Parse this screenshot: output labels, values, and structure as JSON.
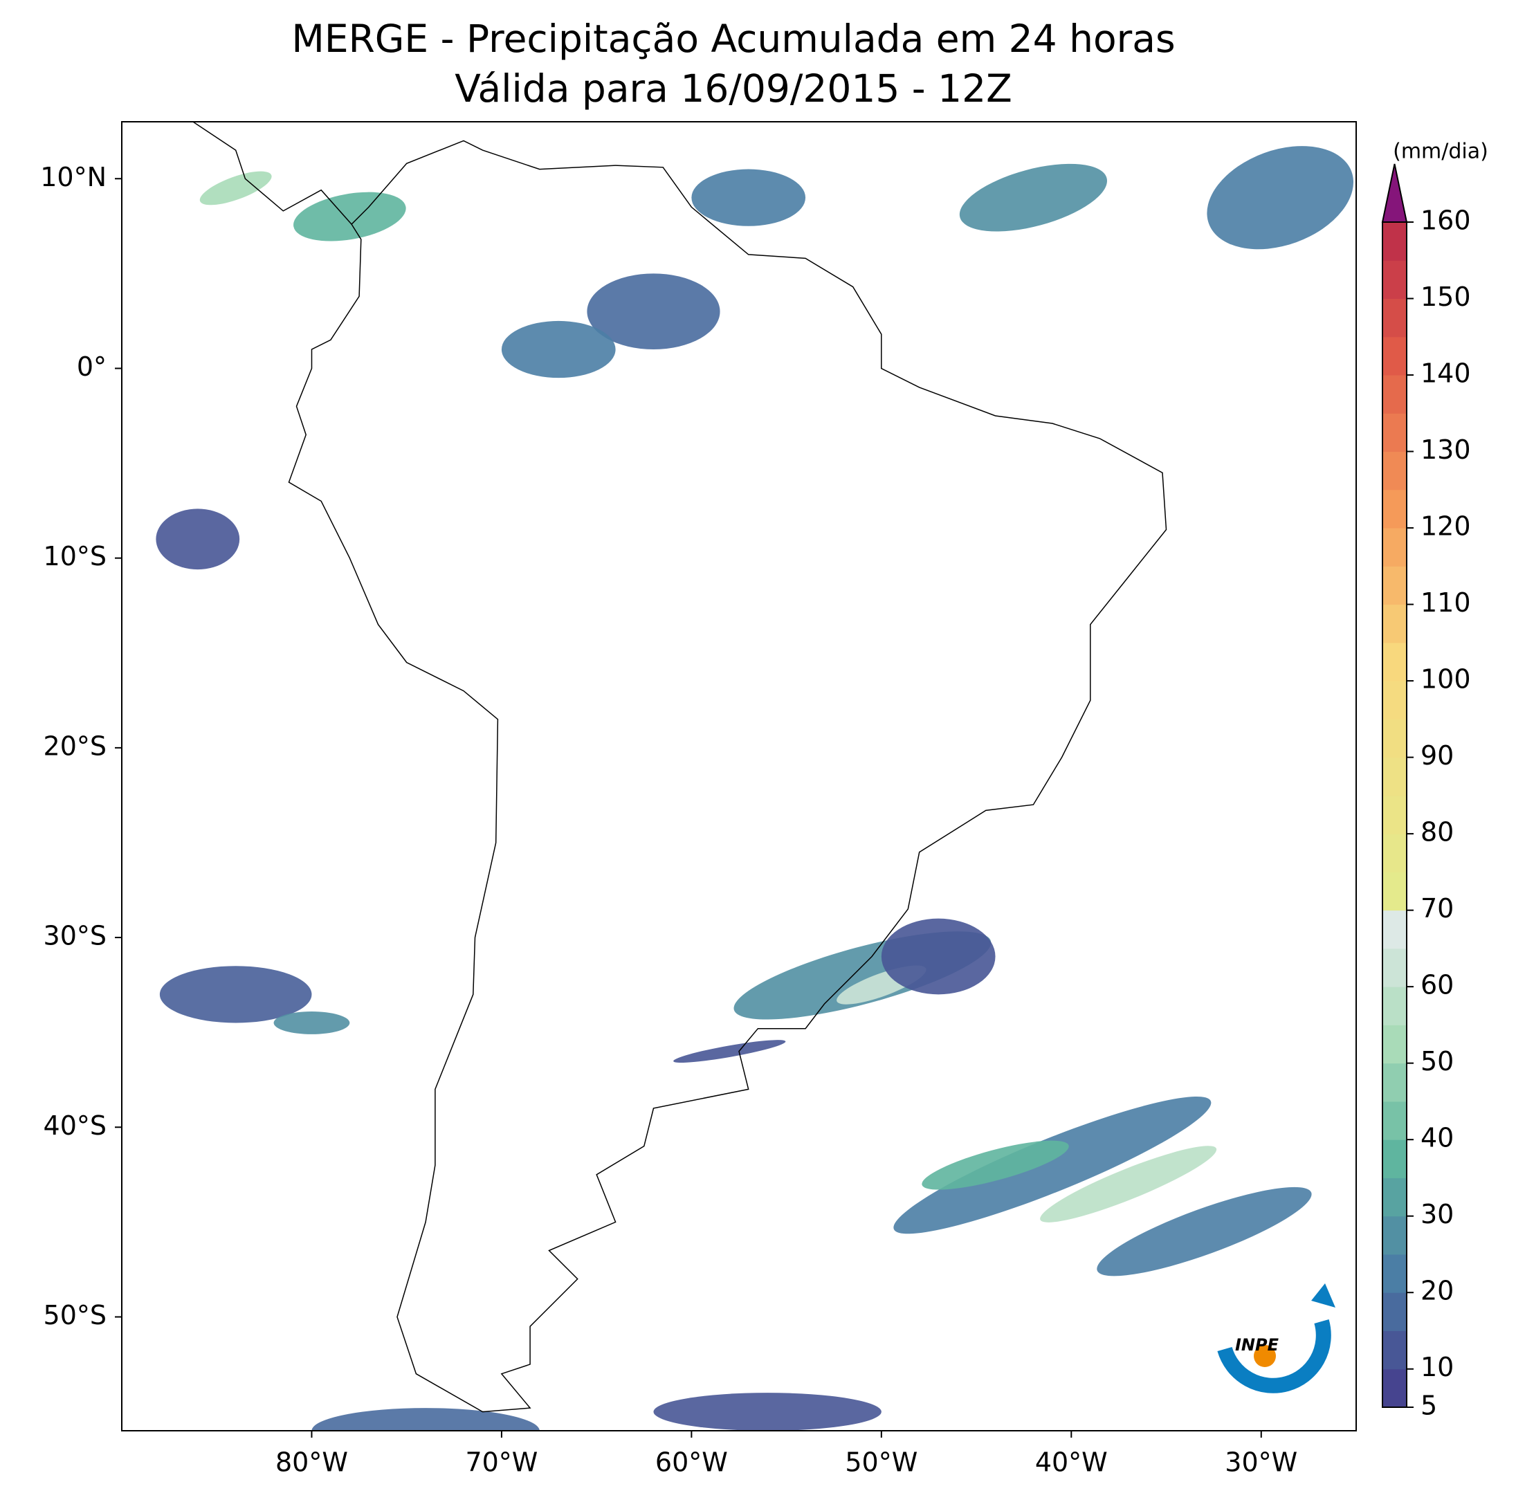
{
  "title": "MERGE - Precipitação Acumulada em 24 horas",
  "subtitle": "Válida para 16/09/2015 - 12Z",
  "map": {
    "xlim": [
      -90,
      -25
    ],
    "ylim": [
      -56,
      13
    ],
    "xticks": [
      {
        "value": -80,
        "label": "80°W"
      },
      {
        "value": -70,
        "label": "70°W"
      },
      {
        "value": -60,
        "label": "60°W"
      },
      {
        "value": -50,
        "label": "50°W"
      },
      {
        "value": -40,
        "label": "40°W"
      },
      {
        "value": -30,
        "label": "30°W"
      }
    ],
    "yticks": [
      {
        "value": 10,
        "label": "10°N"
      },
      {
        "value": 0,
        "label": "0°"
      },
      {
        "value": -10,
        "label": "10°S"
      },
      {
        "value": -20,
        "label": "20°S"
      },
      {
        "value": -30,
        "label": "30°S"
      },
      {
        "value": -40,
        "label": "40°S"
      },
      {
        "value": -50,
        "label": "50°S"
      }
    ]
  },
  "colorbar": {
    "label": "(mm/dia)",
    "lim": [
      5,
      160
    ],
    "ticks": [
      5,
      10,
      20,
      30,
      40,
      50,
      60,
      70,
      80,
      90,
      100,
      110,
      120,
      130,
      140,
      150,
      160
    ],
    "levels": [
      5,
      10,
      15,
      20,
      25,
      30,
      35,
      40,
      45,
      50,
      55,
      60,
      65,
      70,
      75,
      80,
      85,
      90,
      95,
      100,
      105,
      110,
      115,
      120,
      125,
      130,
      135,
      140,
      145,
      150,
      155,
      160
    ],
    "color_stops": [
      [
        5,
        "#46448f"
      ],
      [
        20,
        "#4b7ea5"
      ],
      [
        35,
        "#5fb59f"
      ],
      [
        50,
        "#a9dbb8"
      ],
      [
        65,
        "#dde9e6"
      ],
      [
        70,
        "#e4ea8c"
      ],
      [
        100,
        "#f8d87d"
      ],
      [
        120,
        "#f59a59"
      ],
      [
        140,
        "#e05a48"
      ],
      [
        160,
        "#b52449"
      ]
    ],
    "extend_color": "#85157a"
  },
  "logo_text": "INPE"
}
